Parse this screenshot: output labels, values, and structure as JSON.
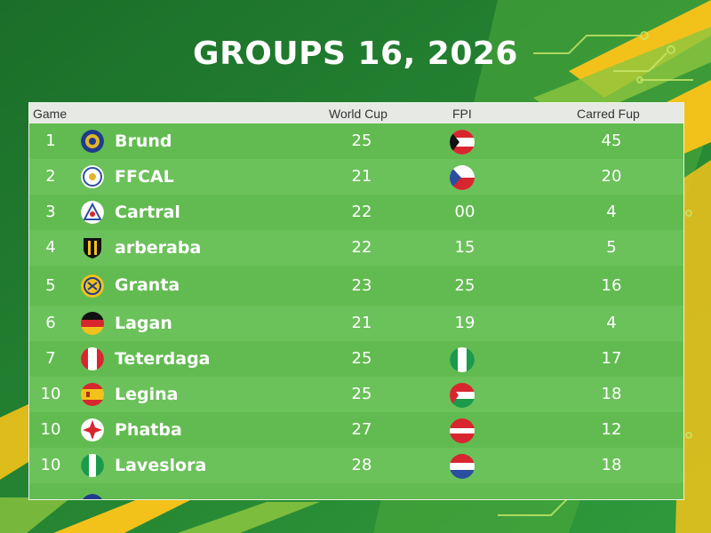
{
  "page": {
    "title": "GROUPS 16, 2026"
  },
  "table": {
    "headers": {
      "game": "Game",
      "world_cup": "World Cup",
      "fpi": "FPI",
      "carred_fup": "Carred Fup"
    },
    "rows": [
      {
        "rank": "1",
        "team": "Brund",
        "world_cup": "25",
        "fpi": "",
        "carred_fup": "45",
        "badge": "navy-crest",
        "fpi_icon": "red-white-black-flag"
      },
      {
        "rank": "2",
        "team": "FFCAL",
        "world_cup": "21",
        "fpi": "",
        "carred_fup": "20",
        "badge": "white-crest",
        "fpi_icon": "blue-red-white-flag"
      },
      {
        "rank": "3",
        "team": "Cartral",
        "world_cup": "22",
        "fpi": "00",
        "carred_fup": "4",
        "badge": "white-crest",
        "fpi_icon": ""
      },
      {
        "rank": "4",
        "team": "arberaba",
        "world_cup": "22",
        "fpi": "15",
        "carred_fup": "5",
        "badge": "black-yellow-shield",
        "fpi_icon": ""
      },
      {
        "rank": "5",
        "team": "Granta",
        "world_cup": "23",
        "fpi": "25",
        "carred_fup": "16",
        "badge": "yellow-crest",
        "fpi_icon": ""
      },
      {
        "rank": "6",
        "team": "Lagan",
        "world_cup": "21",
        "fpi": "19",
        "carred_fup": "4",
        "badge": "germany-flag",
        "fpi_icon": ""
      },
      {
        "rank": "7",
        "team": "Teterdaga",
        "world_cup": "25",
        "fpi": "",
        "carred_fup": "17",
        "badge": "red-white-flag",
        "fpi_icon": "green-white-green-flag"
      },
      {
        "rank": "10",
        "team": "Legina",
        "world_cup": "25",
        "fpi": "",
        "carred_fup": "18",
        "badge": "spain-flag",
        "fpi_icon": "red-white-green-flag"
      },
      {
        "rank": "10",
        "team": "Phatba",
        "world_cup": "27",
        "fpi": "",
        "carred_fup": "12",
        "badge": "red-white-crest",
        "fpi_icon": "red-white-flag"
      },
      {
        "rank": "10",
        "team": "Laveslora",
        "world_cup": "28",
        "fpi": "",
        "carred_fup": "18",
        "badge": "nigeria-flag",
        "fpi_icon": "red-white-blue-flag"
      }
    ]
  },
  "colors": {
    "background_green": "#1f7a2e",
    "accent_yellow": "#f2c21b",
    "table_green": "#5fba4e",
    "header_gray": "#e7e9e5"
  }
}
